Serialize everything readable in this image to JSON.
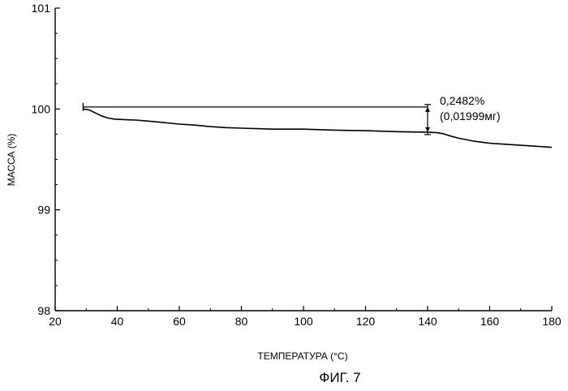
{
  "chart_data": {
    "type": "line",
    "title": "",
    "xlabel": "ТЕМПЕРАТУРА (°C)",
    "ylabel": "МАССА (%)",
    "xlim": [
      20,
      180
    ],
    "ylim": [
      98,
      101
    ],
    "x_ticks": [
      20,
      40,
      60,
      80,
      100,
      120,
      140,
      160,
      180
    ],
    "y_ticks": [
      98,
      99,
      100,
      101
    ],
    "grid": false,
    "series": [
      {
        "color": "#000000",
        "x": [
          29,
          31,
          33,
          35,
          37,
          39,
          42,
          46,
          50,
          55,
          60,
          65,
          70,
          75,
          80,
          85,
          90,
          95,
          100,
          105,
          110,
          115,
          120,
          125,
          130,
          135,
          140,
          143,
          145,
          147,
          150,
          155,
          160,
          165,
          170,
          175,
          180
        ],
        "y": [
          100.0,
          99.99,
          99.96,
          99.93,
          99.91,
          99.9,
          99.895,
          99.89,
          99.88,
          99.865,
          99.85,
          99.84,
          99.825,
          99.815,
          99.81,
          99.805,
          99.8,
          99.8,
          99.8,
          99.795,
          99.79,
          99.787,
          99.785,
          99.78,
          99.775,
          99.772,
          99.77,
          99.765,
          99.755,
          99.735,
          99.71,
          99.68,
          99.66,
          99.65,
          99.64,
          99.63,
          99.62
        ]
      }
    ],
    "annotation": {
      "text_line1": "0,2482%",
      "text_line2": "(0,01999мг)",
      "x_start": 29,
      "x_end": 140,
      "y_top": 100.02,
      "y_bottom": 99.77
    }
  },
  "figure_caption": "ФИГ. 7"
}
